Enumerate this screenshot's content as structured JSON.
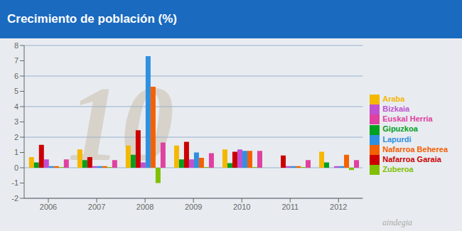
{
  "chart_data": {
    "type": "bar",
    "title": "Crecimiento de población (%)",
    "categories": [
      "2006",
      "2007",
      "2008",
      "2009",
      "2010",
      "2011",
      "2012"
    ],
    "series": [
      {
        "name": "Araba",
        "color": "#f5b800",
        "values": [
          0.7,
          1.2,
          1.45,
          1.45,
          1.2,
          0.0,
          1.05
        ]
      },
      {
        "name": "Gipuzkoa",
        "color": "#00a020",
        "values": [
          0.35,
          0.5,
          0.85,
          0.55,
          0.3,
          0.0,
          0.35
        ]
      },
      {
        "name": "Nafarroa Garaia",
        "color": "#cc0000",
        "values": [
          1.5,
          0.7,
          2.45,
          1.7,
          1.05,
          0.8,
          0.0
        ]
      },
      {
        "name": "Bizkaia",
        "color": "#c050d0",
        "values": [
          0.55,
          0.1,
          0.35,
          0.55,
          1.2,
          0.1,
          0.1
        ]
      },
      {
        "name": "Lapurdi",
        "color": "#3090e0",
        "values": [
          0.1,
          0.1,
          7.3,
          1.0,
          1.1,
          0.1,
          0.1
        ]
      },
      {
        "name": "Nafarroa Beherea",
        "color": "#f56000",
        "values": [
          0.1,
          0.1,
          5.3,
          0.65,
          1.1,
          0.1,
          0.85
        ]
      },
      {
        "name": "Zuberoa",
        "color": "#80c000",
        "values": [
          0.05,
          0.05,
          -1.0,
          0.05,
          0.05,
          0.05,
          -0.15
        ]
      },
      {
        "name": "Euskal Herria",
        "color": "#e040a0",
        "values": [
          0.55,
          0.5,
          1.65,
          0.95,
          1.1,
          0.5,
          0.5
        ]
      }
    ],
    "ylim": [
      -2,
      8
    ],
    "yticks": [
      -2,
      -1,
      0,
      1,
      2,
      3,
      4,
      5,
      6,
      7,
      8
    ],
    "grid": true,
    "legend": "right",
    "annotations": [
      "10",
      "aindegia"
    ]
  }
}
